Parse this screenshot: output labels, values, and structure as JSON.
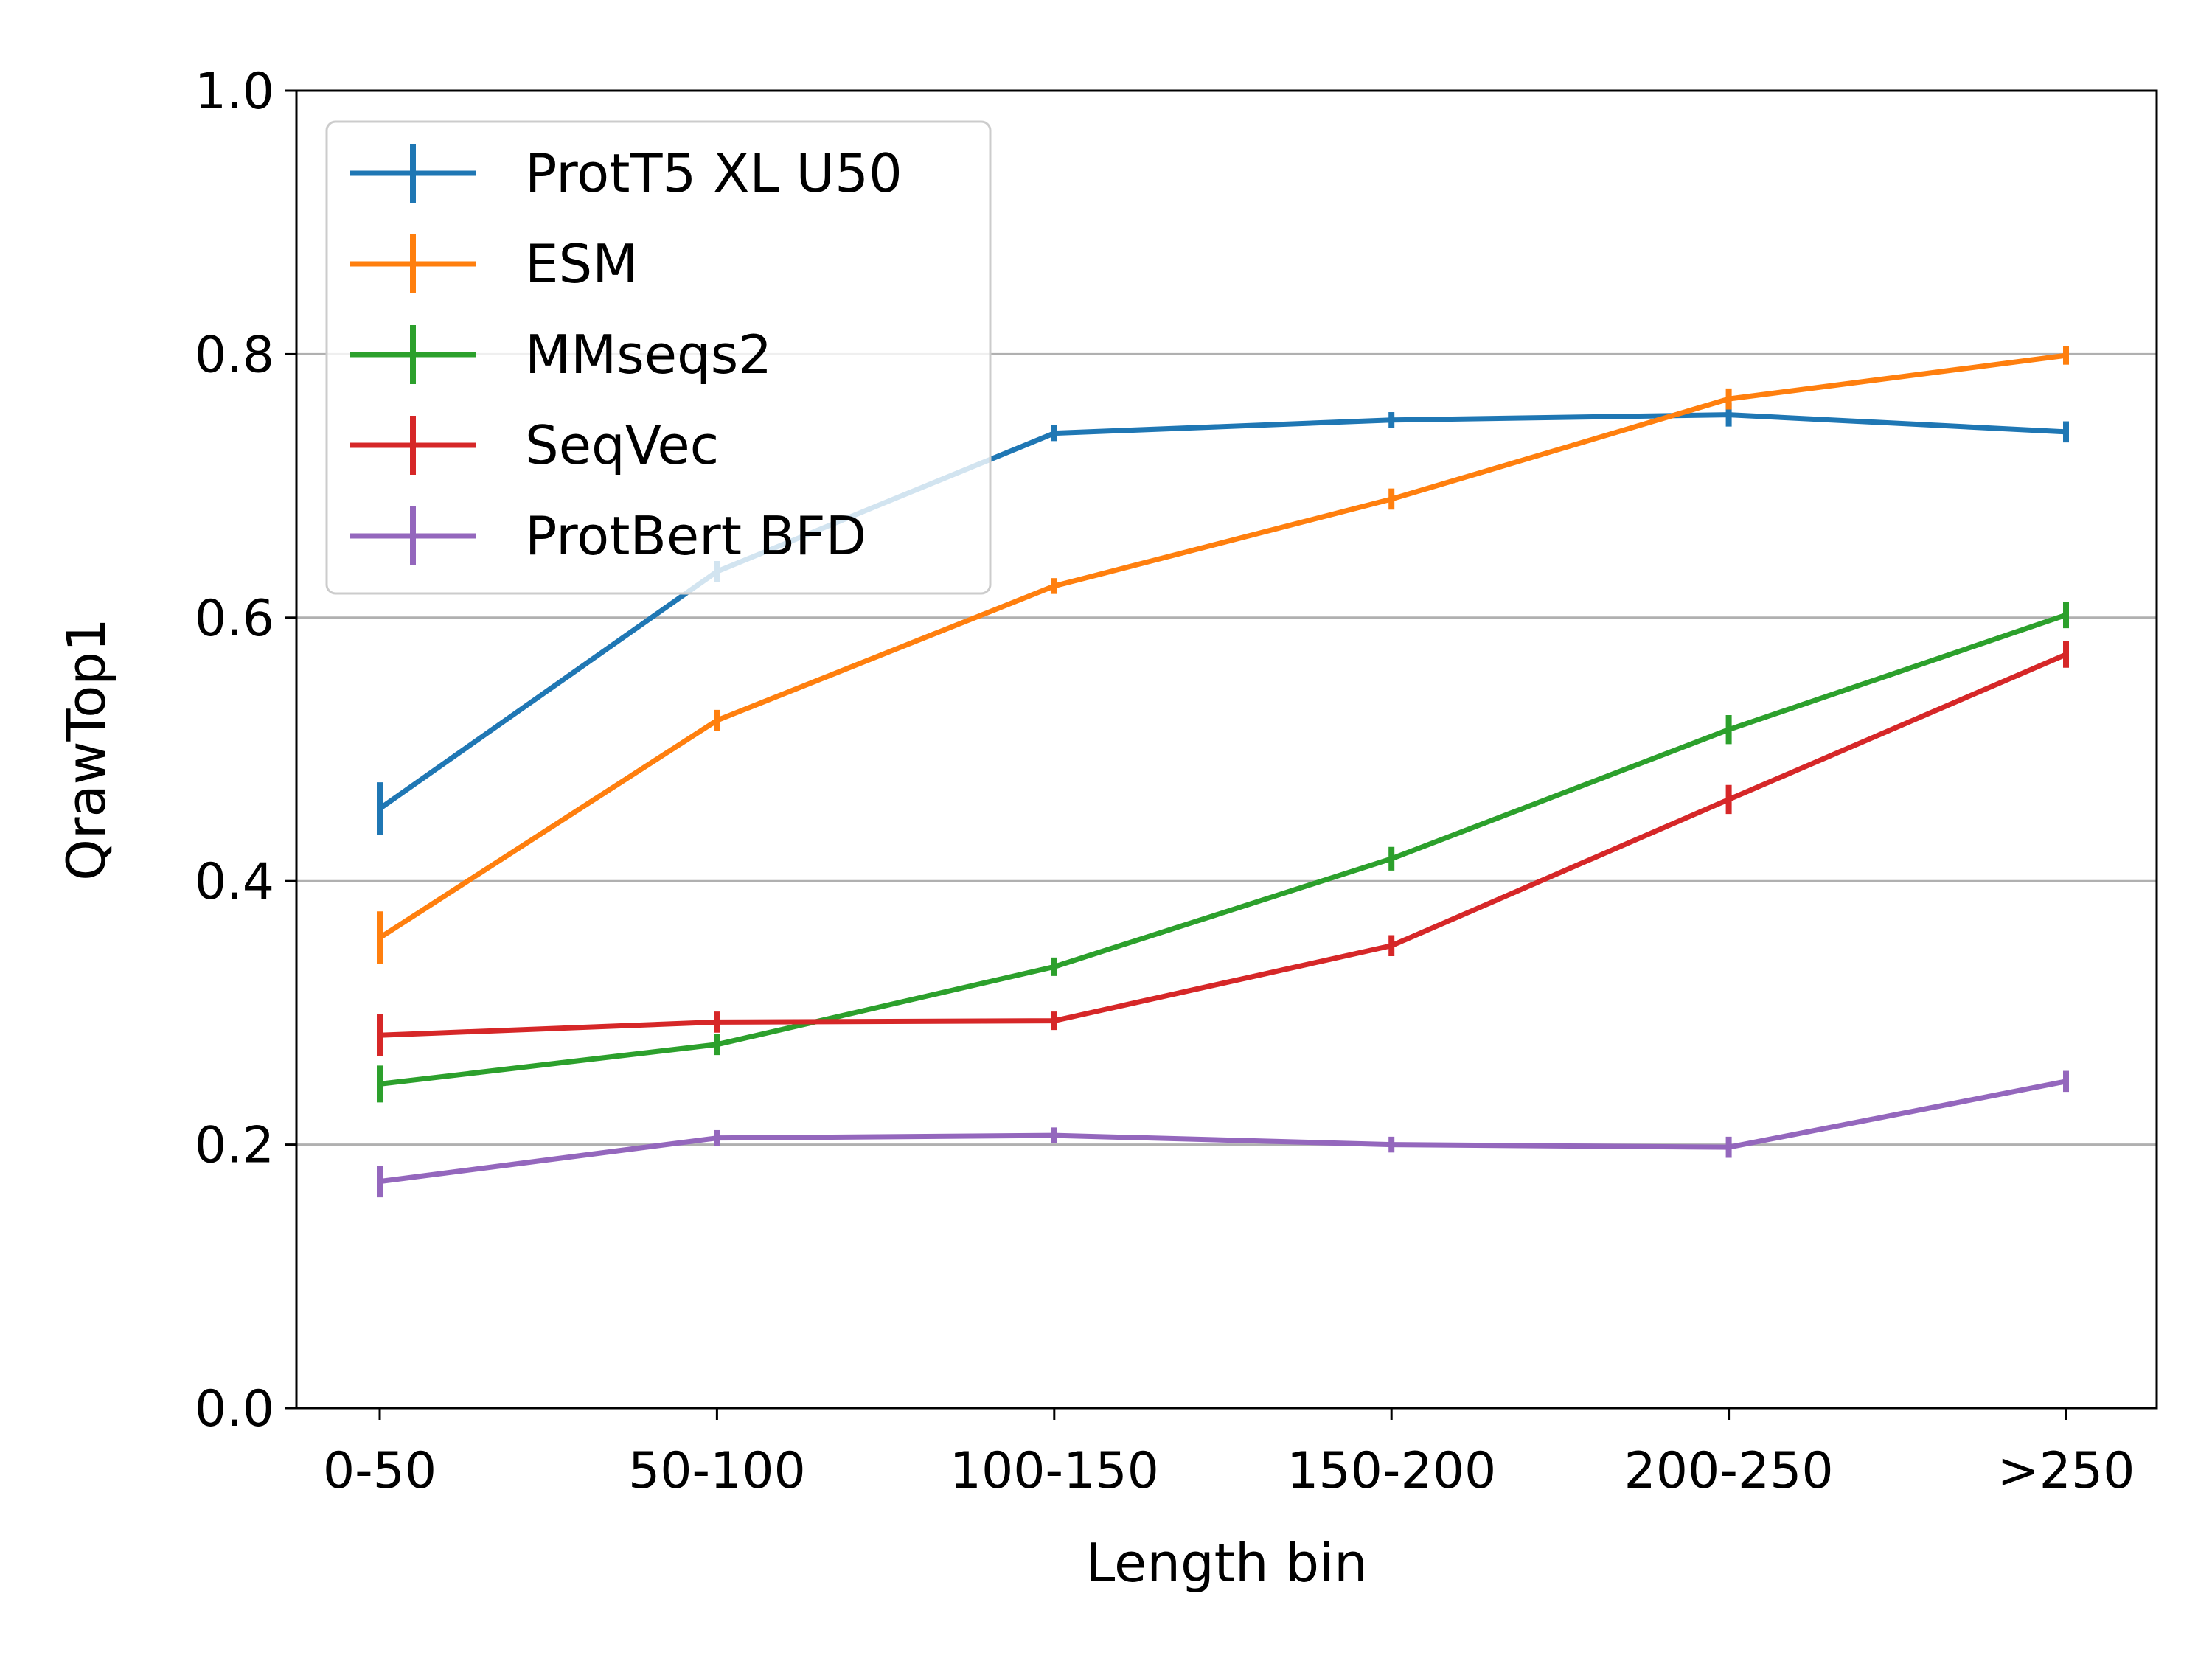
{
  "chart_data": {
    "type": "line",
    "title": "",
    "xlabel": "Length bin",
    "ylabel": "QrawTop1",
    "categories": [
      "0-50",
      "50-100",
      "100-150",
      "150-200",
      "200-250",
      ">250"
    ],
    "ylim": [
      0,
      1
    ],
    "yticks": [
      "0.0",
      "0.2",
      "0.4",
      "0.6",
      "0.8",
      "1.0"
    ],
    "grid": "horizontal",
    "legend_position": "top-left",
    "error_bars": true,
    "series": [
      {
        "name": "ProtT5 XL U50",
        "color": "#1f77b4",
        "values": [
          0.455,
          0.635,
          0.74,
          0.75,
          0.754,
          0.741
        ],
        "errors": [
          0.02,
          0.008,
          0.006,
          0.006,
          0.009,
          0.008
        ]
      },
      {
        "name": "ESM",
        "color": "#ff7f0e",
        "values": [
          0.357,
          0.522,
          0.624,
          0.69,
          0.766,
          0.799
        ],
        "errors": [
          0.02,
          0.008,
          0.006,
          0.008,
          0.008,
          0.007
        ]
      },
      {
        "name": "MMseqs2",
        "color": "#2ca02c",
        "values": [
          0.246,
          0.276,
          0.335,
          0.417,
          0.515,
          0.602
        ],
        "errors": [
          0.014,
          0.008,
          0.007,
          0.009,
          0.011,
          0.01
        ]
      },
      {
        "name": "SeqVec",
        "color": "#d62728",
        "values": [
          0.283,
          0.293,
          0.294,
          0.351,
          0.462,
          0.572
        ],
        "errors": [
          0.016,
          0.008,
          0.007,
          0.008,
          0.011,
          0.01
        ]
      },
      {
        "name": "ProtBert BFD",
        "color": "#9467bd",
        "values": [
          0.172,
          0.205,
          0.207,
          0.2,
          0.198,
          0.248
        ],
        "errors": [
          0.012,
          0.006,
          0.006,
          0.006,
          0.008,
          0.008
        ]
      }
    ]
  }
}
